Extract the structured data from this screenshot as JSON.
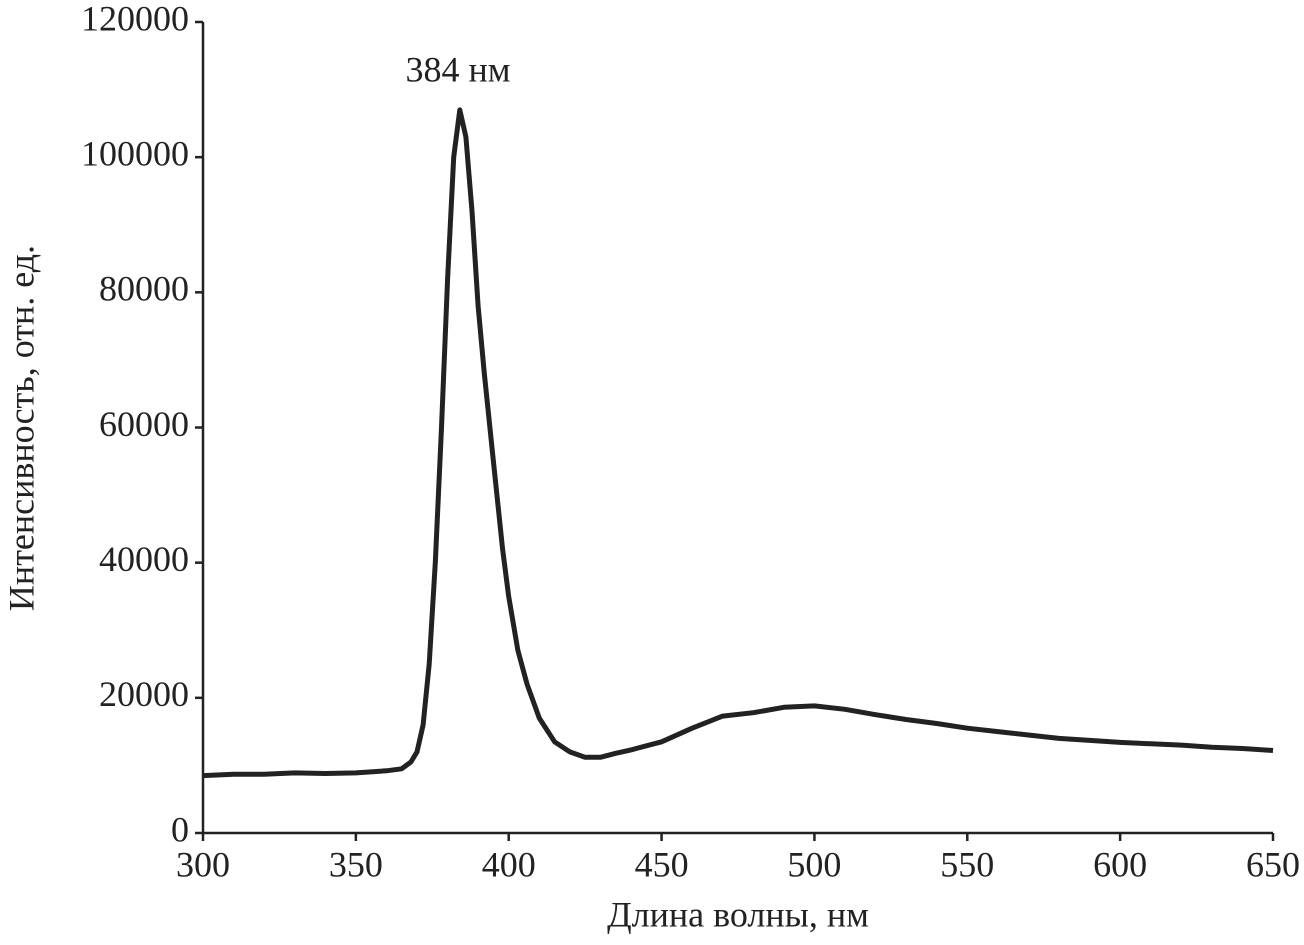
{
  "chart_data": {
    "type": "line",
    "xlabel": "Длина волны, нм",
    "ylabel": "Интенсивность, отн. ед.",
    "annotation": "384 нм",
    "x": [
      300,
      310,
      320,
      330,
      340,
      350,
      360,
      365,
      368,
      370,
      372,
      374,
      376,
      378,
      380,
      382,
      384,
      386,
      388,
      390,
      392,
      395,
      398,
      400,
      403,
      406,
      410,
      415,
      420,
      425,
      430,
      435,
      440,
      450,
      460,
      470,
      480,
      490,
      500,
      510,
      520,
      530,
      540,
      550,
      560,
      570,
      580,
      590,
      600,
      610,
      620,
      630,
      640,
      650
    ],
    "series": [
      {
        "color": "#222222",
        "values": [
          8500,
          8700,
          8700,
          8900,
          8800,
          8900,
          9200,
          9500,
          10500,
          12000,
          16000,
          25000,
          40000,
          60000,
          82000,
          100000,
          107000,
          103000,
          92000,
          78000,
          68000,
          55000,
          42000,
          35000,
          27000,
          22000,
          17000,
          13500,
          12000,
          11200,
          11200,
          11800,
          12300,
          13500,
          15500,
          17300,
          17800,
          18600,
          18800,
          18300,
          17500,
          16800,
          16200,
          15500,
          15000,
          14500,
          14000,
          13700,
          13400,
          13200,
          13000,
          12700,
          12500,
          12200
        ]
      }
    ],
    "xlim": [
      300,
      650
    ],
    "ylim": [
      0,
      120000
    ],
    "xticks": [
      300,
      350,
      400,
      450,
      500,
      550,
      600,
      650
    ],
    "yticks": [
      0,
      20000,
      40000,
      60000,
      80000,
      100000,
      120000
    ],
    "grid": false
  }
}
